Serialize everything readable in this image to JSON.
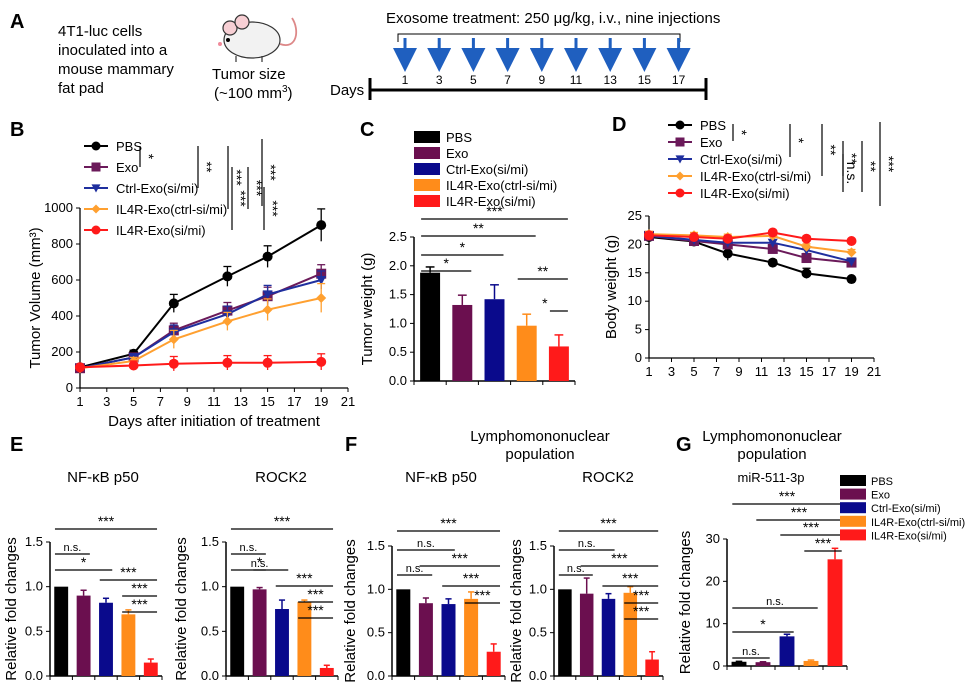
{
  "colors": {
    "PBS": "#000000",
    "Exo": "#6b0f4f",
    "Ctrl": "#0a0a8c",
    "IL4Rctrl": "#ff8c1a",
    "IL4R": "#ff1a1a",
    "arrow": "#1f5fbf",
    "lineCtrl": "#1f2f9e",
    "lineIL4Rctrl": "#ffa030",
    "lineExo": "#6b1a5a"
  },
  "panelA": {
    "letter": "A",
    "cells_text": [
      "4T1-luc cells",
      "inoculated into a",
      "mouse mammary",
      "fat pad"
    ],
    "mouse_icon": "mouse-icon",
    "tumor_text": [
      "Tumor size",
      "(~100 mm",
      "3",
      ")"
    ],
    "treatment_text": "Exosome treatment: 250 μg/kg, i.v., nine injections",
    "days_label": "Days",
    "injection_days": [
      "1",
      "3",
      "5",
      "7",
      "9",
      "11",
      "13",
      "15",
      "17"
    ]
  },
  "chart_data": [
    {
      "id": "B",
      "type": "line",
      "ylabel": "Tumor Volume (mm³)",
      "xlabel": "Days after initiation of treatment",
      "xlim": [
        1,
        21
      ],
      "ylim": [
        0,
        1000
      ],
      "xticks": [
        "1",
        "3",
        "5",
        "7",
        "9",
        "11",
        "13",
        "15",
        "17",
        "19",
        "21"
      ],
      "yticks": [
        "0",
        "200",
        "400",
        "600",
        "800",
        "1000"
      ],
      "x": [
        1,
        5,
        8,
        12,
        15,
        19
      ],
      "series": [
        {
          "name": "PBS",
          "color": "PBS",
          "marker": "circle",
          "values": [
            115,
            190,
            470,
            620,
            730,
            905
          ],
          "err": [
            10,
            20,
            50,
            55,
            60,
            90
          ]
        },
        {
          "name": "Exo",
          "color": "lineExo",
          "marker": "square",
          "values": [
            110,
            170,
            320,
            430,
            510,
            635
          ],
          "err": [
            10,
            20,
            40,
            45,
            50,
            50
          ]
        },
        {
          "name": "Ctrl-Exo(si/mi)",
          "color": "lineCtrl",
          "marker": "triangle",
          "values": [
            110,
            170,
            310,
            410,
            520,
            600
          ],
          "err": [
            10,
            20,
            40,
            45,
            50,
            50
          ]
        },
        {
          "name": "IL4R-Exo(ctrl-si/mi)",
          "color": "lineIL4Rctrl",
          "marker": "diamond",
          "values": [
            110,
            150,
            270,
            370,
            435,
            500
          ],
          "err": [
            10,
            20,
            50,
            50,
            60,
            80
          ]
        },
        {
          "name": "IL4R-Exo(si/mi)",
          "color": "IL4R",
          "marker": "circle",
          "values": [
            115,
            125,
            135,
            140,
            140,
            145
          ],
          "err": [
            10,
            25,
            40,
            40,
            40,
            45
          ]
        }
      ],
      "sig": [
        "*",
        "**",
        "***",
        "***",
        "***",
        "***",
        "***"
      ]
    },
    {
      "id": "C",
      "type": "bar",
      "ylabel": "Tumor weight (g)",
      "ylim": [
        0,
        2.5
      ],
      "yticks": [
        "0.0",
        "0.5",
        "1.0",
        "1.5",
        "2.0",
        "2.5"
      ],
      "categories": [
        "PBS",
        "Exo",
        "Ctrl-Exo(si/mi)",
        "IL4R-Exo(ctrl-si/mi)",
        "IL4R-Exo(si/mi)"
      ],
      "values": [
        1.88,
        1.32,
        1.42,
        0.96,
        0.6
      ],
      "err": [
        0.1,
        0.17,
        0.25,
        0.2,
        0.2
      ],
      "sig": [
        "***",
        "**",
        "*",
        "*",
        "**",
        "*"
      ]
    },
    {
      "id": "D",
      "type": "line",
      "ylabel": "Body weight (g)",
      "xlim": [
        1,
        21
      ],
      "ylim": [
        0,
        25
      ],
      "xticks": [
        "1",
        "3",
        "5",
        "7",
        "9",
        "11",
        "13",
        "15",
        "17",
        "19",
        "21"
      ],
      "yticks": [
        "0",
        "5",
        "10",
        "15",
        "20",
        "25"
      ],
      "x": [
        1,
        5,
        8,
        12,
        15,
        19
      ],
      "series": [
        {
          "name": "PBS",
          "color": "PBS",
          "marker": "circle",
          "values": [
            21.3,
            20.5,
            18.4,
            16.8,
            14.9,
            13.9
          ],
          "err": [
            0.5,
            0.5,
            1.2,
            0.5,
            0.9,
            0.4
          ]
        },
        {
          "name": "Exo",
          "color": "lineExo",
          "marker": "square",
          "values": [
            21.5,
            20.6,
            20.0,
            19.2,
            17.6,
            16.8
          ],
          "err": [
            0.5,
            0.5,
            0.8,
            0.8,
            0.8,
            0.8
          ]
        },
        {
          "name": "Ctrl-Exo(si/mi)",
          "color": "lineCtrl",
          "marker": "triangle",
          "values": [
            21.5,
            20.8,
            20.3,
            20.3,
            19.0,
            17.0
          ],
          "err": [
            0.5,
            0.5,
            0.5,
            0.5,
            0.5,
            0.5
          ]
        },
        {
          "name": "IL4R-Exo(ctrl-si/mi)",
          "color": "lineIL4Rctrl",
          "marker": "diamond",
          "values": [
            21.8,
            21.6,
            21.3,
            21.5,
            19.6,
            18.6
          ],
          "err": [
            0.5,
            0.5,
            0.5,
            0.5,
            0.5,
            0.5
          ]
        },
        {
          "name": "IL4R-Exo(si/mi)",
          "color": "IL4R",
          "marker": "circle",
          "values": [
            21.6,
            21.3,
            21.0,
            22.1,
            21.0,
            20.6
          ],
          "err": [
            0.5,
            0.5,
            0.5,
            0.4,
            0.4,
            0.4
          ]
        }
      ],
      "sig": [
        "*",
        "*",
        "**",
        "n.s.",
        "**",
        "**",
        "***"
      ]
    },
    {
      "id": "E1",
      "type": "bar",
      "title": "NF-κB p50",
      "ylabel": "Relative  fold changes",
      "ylim": [
        0,
        1.5
      ],
      "yticks": [
        "0.0",
        "0.5",
        "1.0",
        "1.5"
      ],
      "categories": [
        "PBS",
        "Exo",
        "Ctrl-Exo(si/mi)",
        "IL4R-Exo(ctrl-si/mi)",
        "IL4R-Exo(si/mi)"
      ],
      "values": [
        1.0,
        0.9,
        0.82,
        0.69,
        0.15
      ],
      "err": [
        0,
        0.06,
        0.05,
        0.05,
        0.04
      ],
      "sig": [
        "***",
        "n.s.",
        "*",
        "***",
        "***",
        "***"
      ]
    },
    {
      "id": "E2",
      "type": "bar",
      "title": "ROCK2",
      "ylabel": "Relative fold changes",
      "ylim": [
        0,
        1.5
      ],
      "yticks": [
        "0.0",
        "0.5",
        "1.0",
        "1.5"
      ],
      "categories": [
        "PBS",
        "Exo",
        "Ctrl-Exo(si/mi)",
        "IL4R-Exo(ctrl-si/mi)",
        "IL4R-Exo(si/mi)"
      ],
      "values": [
        1.0,
        0.97,
        0.75,
        0.83,
        0.09
      ],
      "err": [
        0,
        0.02,
        0.1,
        0.02,
        0.03
      ],
      "sig": [
        "***",
        "n.s.",
        "*",
        "n.s.",
        "***",
        "***",
        "***"
      ]
    },
    {
      "id": "F1",
      "type": "bar",
      "title": "NF-κB p50",
      "ylabel": "Relative  fold changes",
      "ylim": [
        0,
        1.5
      ],
      "yticks": [
        "0.0",
        "0.5",
        "1.0",
        "1.5"
      ],
      "categories": [
        "PBS",
        "Exo",
        "Ctrl-Exo(si/mi)",
        "IL4R-Exo(ctrl-si/mi)",
        "IL4R-Exo(si/mi)"
      ],
      "values": [
        1.0,
        0.84,
        0.83,
        0.89,
        0.28
      ],
      "err": [
        0,
        0.06,
        0.06,
        0.08,
        0.09
      ],
      "sig": [
        "***",
        "n.s.",
        "***",
        "n.s.",
        "***",
        "***"
      ]
    },
    {
      "id": "F2",
      "type": "bar",
      "title": "ROCK2",
      "ylabel": "Relative  fold changes",
      "ylim": [
        0,
        1.5
      ],
      "yticks": [
        "0.0",
        "0.5",
        "1.0",
        "1.5"
      ],
      "categories": [
        "PBS",
        "Exo",
        "Ctrl-Exo(si/mi)",
        "IL4R-Exo(ctrl-si/mi)",
        "IL4R-Exo(si/mi)"
      ],
      "values": [
        1.0,
        0.95,
        0.89,
        0.96,
        0.19
      ],
      "err": [
        0,
        0.18,
        0.06,
        0.07,
        0.09
      ],
      "sig": [
        "***",
        "n.s.",
        "***",
        "n.s.",
        "***",
        "***",
        "***"
      ]
    },
    {
      "id": "G",
      "type": "bar",
      "title": "miR-511-3p",
      "ylabel": "Relative  fold changes",
      "ylim": [
        0,
        30
      ],
      "yticks": [
        "0",
        "10",
        "20",
        "30"
      ],
      "categories": [
        "PBS",
        "Exo",
        "Ctrl-Exo(si/mi)",
        "IL4R-Exo(ctrl-si/mi)",
        "IL4R-Exo(si/mi)"
      ],
      "values": [
        1.0,
        0.9,
        7.0,
        1.2,
        25.2
      ],
      "err": [
        0.1,
        0.1,
        0.5,
        0.2,
        2.6
      ],
      "sig": [
        "***",
        "***",
        "***",
        "***",
        "n.s.",
        "*",
        "n.s."
      ]
    }
  ],
  "panelF": {
    "letter": "F",
    "header": [
      "Lymphomononuclear",
      "population"
    ]
  },
  "panelG": {
    "letter": "G",
    "header": [
      "Lymphomononuclear",
      "population"
    ]
  },
  "letters": {
    "B": "B",
    "C": "C",
    "D": "D",
    "E": "E"
  }
}
